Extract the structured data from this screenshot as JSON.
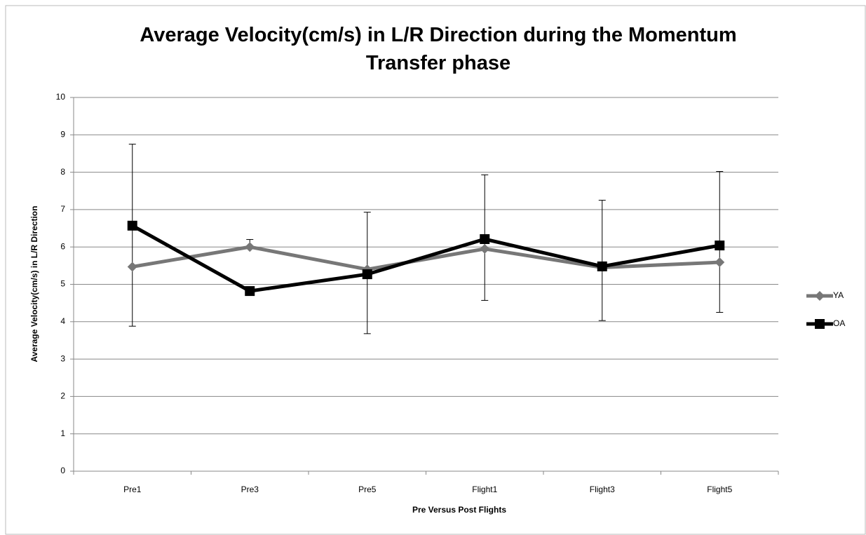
{
  "chart_data": {
    "type": "line",
    "title": "Average Velocity(cm/s) in L/R Direction during the Momentum Transfer phase",
    "x_label": "Pre Versus Post Flights",
    "y_label": "Average Velocity(cm/s) in L/R Direction",
    "categories": [
      "Pre1",
      "Pre3",
      "Pre5",
      "Flight1",
      "Flight3",
      "Flight5"
    ],
    "series": [
      {
        "name": "YA",
        "color": "#777777",
        "marker": "diamond",
        "values": [
          5.47,
          6.0,
          5.4,
          5.95,
          5.45,
          5.59
        ]
      },
      {
        "name": "OA",
        "color": "#000000",
        "marker": "square",
        "values": [
          6.57,
          4.82,
          5.27,
          6.21,
          5.48,
          6.04
        ]
      }
    ],
    "error_bars": {
      "high": [
        8.75,
        6.2,
        6.93,
        7.93,
        7.25,
        8.02
      ],
      "low": [
        3.88,
        6.0,
        3.68,
        4.57,
        4.03,
        4.25
      ]
    },
    "ylim": [
      0,
      10
    ],
    "yticks": [
      0,
      1,
      2,
      3,
      4,
      5,
      6,
      7,
      8,
      9,
      10
    ],
    "grid": true,
    "legend": "right"
  }
}
